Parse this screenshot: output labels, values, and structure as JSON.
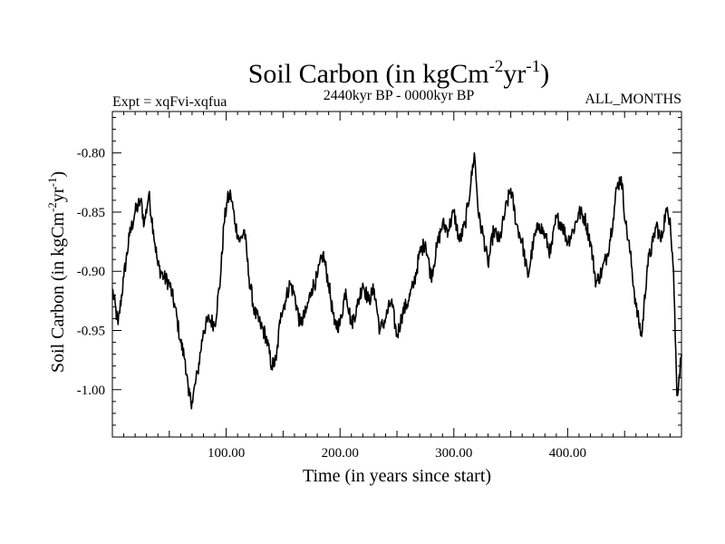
{
  "chart_data": {
    "type": "line",
    "title": "Soil Carbon (in kgCm",
    "title_sup1": "-2",
    "title_mid": "yr",
    "title_sup2": "-1",
    "title_end": ")",
    "subtitle_left": "Expt = xqFvi-xqfua",
    "subtitle_center": "2440kyr BP - 0000kyr BP",
    "subtitle_right": "ALL_MONTHS",
    "xlabel": "Time (in years since start)",
    "ylabel": "Soil Carbon (in kgCm",
    "ylabel_sup1": "-2",
    "ylabel_mid": "yr",
    "ylabel_sup2": "-1",
    "ylabel_end": ")",
    "xlim": [
      0,
      500
    ],
    "ylim": [
      -1.04,
      -0.765
    ],
    "xticks": [
      {
        "value": 100,
        "label": "100.00"
      },
      {
        "value": 200,
        "label": "200.00"
      },
      {
        "value": 300,
        "label": "300.00"
      },
      {
        "value": 400,
        "label": "400.00"
      }
    ],
    "yticks": [
      {
        "value": -1.0,
        "label": "-1.00"
      },
      {
        "value": -0.95,
        "label": "-0.95"
      },
      {
        "value": -0.9,
        "label": "-0.90"
      },
      {
        "value": -0.85,
        "label": "-0.85"
      },
      {
        "value": -0.8,
        "label": "-0.80"
      }
    ],
    "series": [
      {
        "name": "Soil Carbon",
        "x": [
          0,
          5,
          10,
          15,
          20,
          25,
          28,
          32,
          36,
          40,
          45,
          50,
          55,
          60,
          64,
          67,
          70,
          75,
          80,
          85,
          90,
          95,
          98,
          101,
          104,
          108,
          112,
          116,
          120,
          125,
          130,
          135,
          140,
          144,
          148,
          152,
          156,
          160,
          165,
          170,
          175,
          180,
          185,
          190,
          195,
          200,
          205,
          210,
          215,
          220,
          225,
          230,
          235,
          240,
          245,
          250,
          255,
          260,
          265,
          270,
          275,
          280,
          285,
          290,
          295,
          300,
          305,
          310,
          315,
          318,
          322,
          326,
          330,
          335,
          340,
          345,
          350,
          355,
          360,
          365,
          370,
          375,
          380,
          385,
          390,
          395,
          400,
          405,
          410,
          415,
          420,
          425,
          430,
          435,
          440,
          443,
          447,
          451,
          455,
          460,
          465,
          470,
          475,
          478,
          482,
          486,
          490,
          493,
          496,
          500
        ],
        "values": [
          -0.915,
          -0.945,
          -0.905,
          -0.87,
          -0.85,
          -0.84,
          -0.86,
          -0.835,
          -0.865,
          -0.895,
          -0.905,
          -0.91,
          -0.93,
          -0.96,
          -0.975,
          -1.005,
          -1.01,
          -0.985,
          -0.95,
          -0.94,
          -0.945,
          -0.905,
          -0.86,
          -0.84,
          -0.835,
          -0.86,
          -0.875,
          -0.865,
          -0.905,
          -0.935,
          -0.945,
          -0.955,
          -0.98,
          -0.975,
          -0.935,
          -0.925,
          -0.91,
          -0.92,
          -0.945,
          -0.935,
          -0.915,
          -0.905,
          -0.885,
          -0.91,
          -0.945,
          -0.945,
          -0.915,
          -0.945,
          -0.93,
          -0.91,
          -0.925,
          -0.915,
          -0.95,
          -0.94,
          -0.925,
          -0.955,
          -0.935,
          -0.925,
          -0.91,
          -0.885,
          -0.875,
          -0.905,
          -0.88,
          -0.86,
          -0.865,
          -0.85,
          -0.875,
          -0.86,
          -0.825,
          -0.8,
          -0.855,
          -0.87,
          -0.895,
          -0.865,
          -0.875,
          -0.85,
          -0.83,
          -0.86,
          -0.875,
          -0.905,
          -0.875,
          -0.86,
          -0.87,
          -0.885,
          -0.855,
          -0.86,
          -0.875,
          -0.865,
          -0.85,
          -0.855,
          -0.875,
          -0.91,
          -0.9,
          -0.885,
          -0.855,
          -0.83,
          -0.82,
          -0.86,
          -0.885,
          -0.93,
          -0.955,
          -0.895,
          -0.875,
          -0.86,
          -0.875,
          -0.85,
          -0.855,
          -0.9,
          -1.005,
          -0.97
        ]
      }
    ]
  }
}
